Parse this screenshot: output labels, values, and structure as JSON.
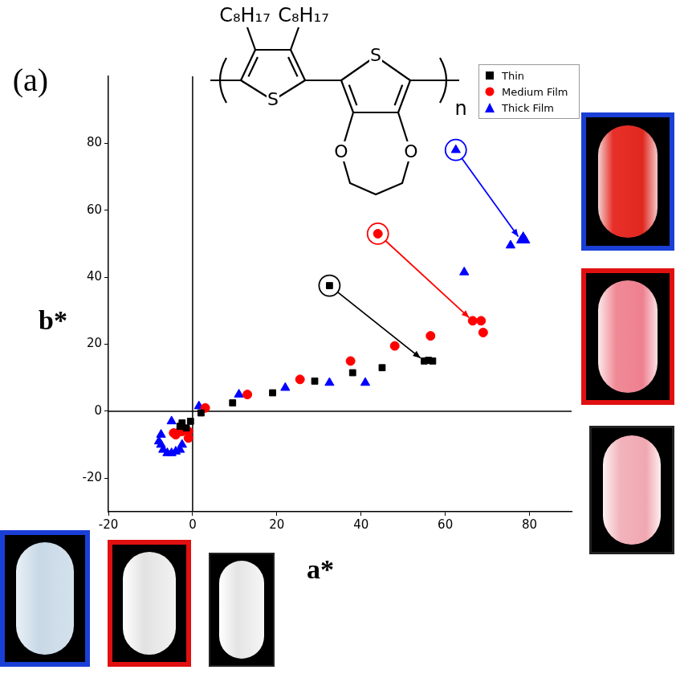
{
  "panel_label": "(a)",
  "structure": {
    "substituents": [
      "C₈H₁₇",
      "C₈H₁₇"
    ],
    "ring_atoms": [
      "S",
      "S"
    ],
    "oxygens": [
      "O",
      "O"
    ],
    "repeat": "n"
  },
  "chart_data": {
    "type": "scatter",
    "x_label": "a*",
    "y_label": "b*",
    "xlim": [
      -20,
      90
    ],
    "xticks": [
      -20,
      0,
      20,
      40,
      60,
      80
    ],
    "ylim": [
      -30,
      100
    ],
    "yticks": [
      -20,
      0,
      20,
      40,
      60,
      80
    ],
    "grid": false,
    "legend": "upper right",
    "series": [
      {
        "name": "Thin",
        "color": "#000000",
        "marker": "square",
        "x": [
          32.5,
          55,
          57,
          56,
          45,
          38,
          29,
          19,
          9.5,
          2,
          -0.5,
          -2.5,
          -1.5,
          -3
        ],
        "values": [
          37.5,
          15,
          15,
          15.2,
          13,
          11.5,
          9,
          5.5,
          2.5,
          -0.5,
          -3,
          -3.5,
          -5,
          -4.5
        ]
      },
      {
        "name": "Medium Film",
        "color": "#ff0000",
        "marker": "circle",
        "x": [
          44,
          66.5,
          68.5,
          69,
          56.5,
          48,
          37.5,
          25.5,
          13,
          3,
          -1,
          -2,
          -3,
          -4,
          -4.5,
          -2.5,
          -1
        ],
        "values": [
          53,
          27,
          27,
          23.5,
          22.5,
          19.5,
          15,
          9.5,
          5,
          1,
          -6,
          -5.5,
          -6,
          -7,
          -6.5,
          -6,
          -8
        ]
      },
      {
        "name": "Thick Film",
        "color": "#0000ff",
        "marker": "triangle",
        "x": [
          62.5,
          78.5,
          78,
          75.5,
          79,
          64.5,
          41,
          32.5,
          22,
          11,
          1.5,
          -5,
          -7.5,
          -7.5,
          -7,
          -6,
          -5,
          -4,
          -3,
          -2.5,
          -8
        ],
        "values": [
          78,
          52,
          51,
          49.5,
          51,
          41.5,
          8.5,
          8.5,
          7,
          5,
          1.5,
          -3,
          -7,
          -10,
          -11.5,
          -12.5,
          -12.5,
          -12,
          -11.5,
          -10,
          -9
        ]
      }
    ],
    "annotations": [
      {
        "series": "Thin",
        "from": [
          32.5,
          37.5
        ],
        "to": [
          55,
          15
        ]
      },
      {
        "series": "Medium Film",
        "from": [
          44,
          53
        ],
        "to": [
          66.5,
          27
        ]
      },
      {
        "series": "Thick Film",
        "from": [
          62.5,
          78
        ],
        "to": [
          78,
          51
        ]
      }
    ]
  }
}
